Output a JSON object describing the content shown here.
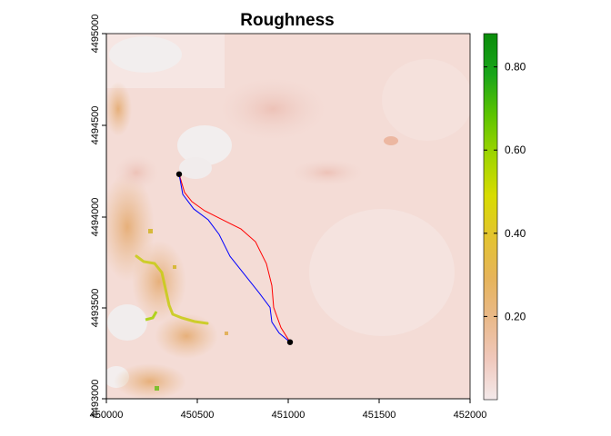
{
  "title": "Roughness",
  "map": {
    "x_ticks": [
      "450000",
      "450500",
      "451000",
      "451500",
      "452000"
    ],
    "y_ticks": [
      "4493000",
      "4493500",
      "4494000",
      "4494500",
      "4495000"
    ],
    "x_range": [
      450000,
      452000
    ],
    "y_range": [
      4493000,
      4495000
    ],
    "start_point": {
      "x": 450400,
      "y": 4494230
    },
    "end_point": {
      "x": 451010,
      "y": 4493310
    },
    "routes": [
      {
        "color": "#ff0000",
        "points": [
          [
            450400,
            4494230
          ],
          [
            450430,
            4494130
          ],
          [
            450470,
            4494080
          ],
          [
            450540,
            4494030
          ],
          [
            450640,
            4493980
          ],
          [
            450740,
            4493930
          ],
          [
            450820,
            4493860
          ],
          [
            450880,
            4493740
          ],
          [
            450910,
            4493620
          ],
          [
            450920,
            4493500
          ],
          [
            450960,
            4493390
          ],
          [
            451010,
            4493310
          ]
        ]
      },
      {
        "color": "#0000ff",
        "points": [
          [
            450400,
            4494230
          ],
          [
            450420,
            4494120
          ],
          [
            450480,
            4494040
          ],
          [
            450560,
            4493980
          ],
          [
            450620,
            4493900
          ],
          [
            450680,
            4493780
          ],
          [
            450760,
            4493680
          ],
          [
            450840,
            4493580
          ],
          [
            450900,
            4493500
          ],
          [
            450910,
            4493420
          ],
          [
            450950,
            4493360
          ],
          [
            451010,
            4493310
          ]
        ]
      }
    ]
  },
  "legend": {
    "ticks": [
      "0.20",
      "0.40",
      "0.60",
      "0.80"
    ],
    "tick_values": [
      0.2,
      0.4,
      0.6,
      0.8
    ],
    "range": [
      0.0,
      0.88
    ],
    "colors": [
      "#f3e9ea",
      "#f0c8bc",
      "#e9b98a",
      "#e6b45a",
      "#e3c330",
      "#d8dc00",
      "#a0d500",
      "#5cc400",
      "#19a51a",
      "#0a8c0a"
    ]
  }
}
